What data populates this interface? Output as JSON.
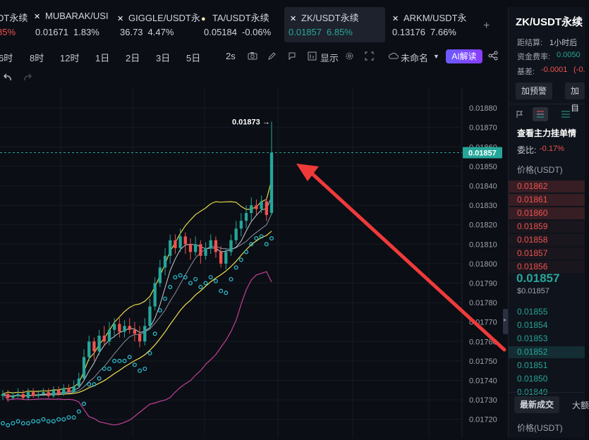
{
  "tabs": [
    {
      "name": "DT永续",
      "price": "",
      "change": "85%",
      "dir": "down",
      "active": false,
      "mark": ""
    },
    {
      "name": "MUBARAK/USI",
      "price": "0.01671",
      "change": "1.83%",
      "dir": "plain",
      "active": false,
      "mark": "✕"
    },
    {
      "name": "GIGGLE/USDT永",
      "price": "36.73",
      "change": "4.47%",
      "dir": "plain",
      "active": false,
      "mark": "✕"
    },
    {
      "name": "TA/USDT永续",
      "price": "0.05184",
      "change": "-0.06%",
      "dir": "plain",
      "active": false,
      "mark": "●"
    },
    {
      "name": "ZK/USDT永续",
      "price": "0.01857",
      "change": "6.85%",
      "dir": "up",
      "active": true,
      "mark": "✕"
    },
    {
      "name": "ARKM/USDT永",
      "price": "0.13176",
      "change": "7.66%",
      "dir": "plain",
      "active": false,
      "mark": "✕"
    }
  ],
  "add_tab_icon": "+",
  "toolbar": {
    "intervals": [
      "6时",
      "8时",
      "12时",
      "1日",
      "2日",
      "3日",
      "5日"
    ],
    "seconds": "2s",
    "display": "显示",
    "layout_name": "未命名",
    "ai_label": "AI解读"
  },
  "panel": {
    "symbol": "ZK/USDT永续",
    "settlement_label": "距结算:",
    "settlement_value": "1小时后",
    "funding_label": "资金费率:",
    "funding_value": "0.0050",
    "basis_label": "基差:",
    "basis_value": "-0.0001",
    "basis_extra": "(-0.",
    "alert_button": "加预警",
    "add_button": "加自",
    "depth_title": "查看主力挂单情",
    "ratio_label": "委比:",
    "ratio_value": "-0.17%",
    "price_header": "价格(USDT)",
    "asks": [
      "0.01862",
      "0.01861",
      "0.01860",
      "0.01859",
      "0.01858",
      "0.01857",
      "0.01856"
    ],
    "last_price": "0.01857",
    "last_price_usd": "$0.01857",
    "bids": [
      "0.01855",
      "0.01854",
      "0.01853",
      "0.01852",
      "0.01851",
      "0.01850",
      "0.01849"
    ],
    "trades_tab": "最新成交",
    "trades_tab2": "大额",
    "trades_price_header": "价格(USDT)"
  },
  "chart_data": {
    "type": "candlestick",
    "y_ticks": [
      "0.01880",
      "0.01870",
      "0.01860",
      "0.01850",
      "0.01840",
      "0.01830",
      "0.01820",
      "0.01810",
      "0.01800",
      "0.01790",
      "0.01780",
      "0.01770",
      "0.01760",
      "0.01750",
      "0.01740",
      "0.01730",
      "0.01720"
    ],
    "ylim": [
      0.01717,
      0.01884
    ],
    "high_label": "0.01873",
    "current_price": "0.01857",
    "current_price_value": 0.01857,
    "candles": [
      [
        0.01732,
        0.01733,
        0.01735,
        0.0173
      ],
      [
        0.01733,
        0.01731,
        0.01735,
        0.01729
      ],
      [
        0.01731,
        0.01732,
        0.01734,
        0.0173
      ],
      [
        0.01732,
        0.01733,
        0.01736,
        0.01731
      ],
      [
        0.01733,
        0.01731,
        0.01735,
        0.0173
      ],
      [
        0.01731,
        0.01734,
        0.01736,
        0.0173
      ],
      [
        0.01734,
        0.01732,
        0.01736,
        0.01731
      ],
      [
        0.01732,
        0.01733,
        0.01735,
        0.01731
      ],
      [
        0.01733,
        0.01734,
        0.01736,
        0.01732
      ],
      [
        0.01734,
        0.01732,
        0.01736,
        0.01731
      ],
      [
        0.01732,
        0.01735,
        0.01737,
        0.01731
      ],
      [
        0.01735,
        0.01733,
        0.01737,
        0.01732
      ],
      [
        0.01733,
        0.01736,
        0.01738,
        0.01732
      ],
      [
        0.01736,
        0.01734,
        0.01738,
        0.01733
      ],
      [
        0.01734,
        0.01737,
        0.0174,
        0.01733
      ],
      [
        0.01737,
        0.01741,
        0.01744,
        0.01736
      ],
      [
        0.01741,
        0.01752,
        0.01756,
        0.0174
      ],
      [
        0.01752,
        0.0176,
        0.01763,
        0.0175
      ],
      [
        0.0176,
        0.01755,
        0.01762,
        0.0175
      ],
      [
        0.01755,
        0.01763,
        0.01766,
        0.01753
      ],
      [
        0.01763,
        0.0176,
        0.01768,
        0.01758
      ],
      [
        0.0176,
        0.01766,
        0.0177,
        0.01758
      ],
      [
        0.01766,
        0.01769,
        0.01772,
        0.01762
      ],
      [
        0.01769,
        0.01765,
        0.01772,
        0.01762
      ],
      [
        0.01765,
        0.01768,
        0.01771,
        0.01762
      ],
      [
        0.01768,
        0.01766,
        0.01772,
        0.01764
      ],
      [
        0.01766,
        0.01764,
        0.0177,
        0.0176
      ],
      [
        0.01764,
        0.0176,
        0.01768,
        0.01757
      ],
      [
        0.0176,
        0.01768,
        0.01772,
        0.01758
      ],
      [
        0.01768,
        0.01778,
        0.01782,
        0.01766
      ],
      [
        0.01778,
        0.0179,
        0.01793,
        0.01776
      ],
      [
        0.0179,
        0.01798,
        0.01802,
        0.01788
      ],
      [
        0.01798,
        0.01804,
        0.01808,
        0.01794
      ],
      [
        0.01804,
        0.01812,
        0.01815,
        0.018
      ],
      [
        0.01812,
        0.01808,
        0.01815,
        0.01805
      ],
      [
        0.01808,
        0.01814,
        0.01818,
        0.01806
      ],
      [
        0.01814,
        0.0181,
        0.01816,
        0.01805
      ],
      [
        0.0181,
        0.01806,
        0.01813,
        0.01802
      ],
      [
        0.01806,
        0.0181,
        0.01814,
        0.01804
      ],
      [
        0.0181,
        0.01804,
        0.01812,
        0.018
      ],
      [
        0.01804,
        0.01808,
        0.01811,
        0.01802
      ],
      [
        0.01808,
        0.01812,
        0.01815,
        0.01805
      ],
      [
        0.01812,
        0.01806,
        0.01814,
        0.01803
      ],
      [
        0.01806,
        0.018,
        0.01809,
        0.01798
      ],
      [
        0.018,
        0.01806,
        0.01808,
        0.01797
      ],
      [
        0.01806,
        0.01812,
        0.01815,
        0.01804
      ],
      [
        0.01812,
        0.01818,
        0.01822,
        0.0181
      ],
      [
        0.01818,
        0.01822,
        0.01826,
        0.01814
      ],
      [
        0.01822,
        0.01826,
        0.0183,
        0.01818
      ],
      [
        0.01826,
        0.0183,
        0.01834,
        0.01822
      ],
      [
        0.0183,
        0.01828,
        0.01833,
        0.01825
      ],
      [
        0.01828,
        0.01832,
        0.01835,
        0.01826
      ],
      [
        0.01832,
        0.01825,
        0.01834,
        0.01822
      ],
      [
        0.01826,
        0.01857,
        0.01873,
        0.01825
      ]
    ],
    "arrow": true
  },
  "colors": {
    "up": "#26a69a",
    "down": "#ef5350",
    "accent": "#26a69a",
    "ai": "#7b4dff"
  }
}
